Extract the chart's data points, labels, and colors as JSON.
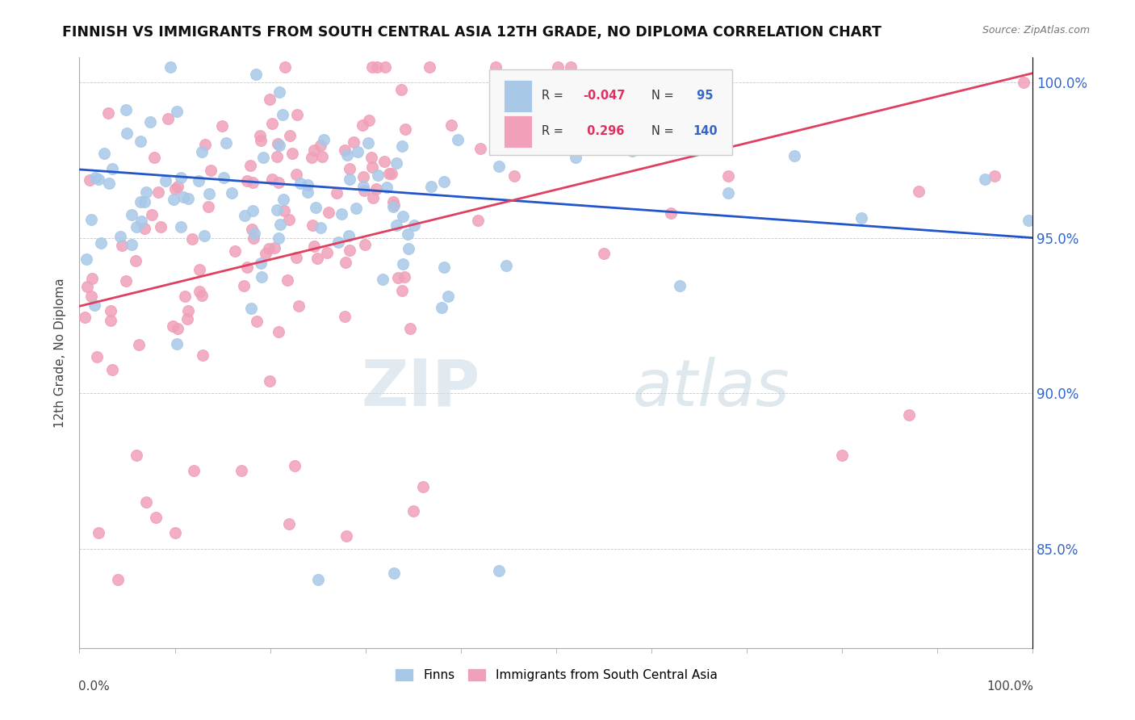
{
  "title": "FINNISH VS IMMIGRANTS FROM SOUTH CENTRAL ASIA 12TH GRADE, NO DIPLOMA CORRELATION CHART",
  "source": "Source: ZipAtlas.com",
  "ylabel": "12th Grade, No Diploma",
  "xlim": [
    0.0,
    1.0
  ],
  "ylim": [
    0.818,
    1.008
  ],
  "ytick_values": [
    0.85,
    0.9,
    0.95,
    1.0
  ],
  "finns_color": "#a8c8e8",
  "immigrants_color": "#f0a0b8",
  "line_finns_color": "#2255cc",
  "line_immigrants_color": "#e04060",
  "background_color": "#ffffff",
  "finn_R": -0.047,
  "finn_N": 95,
  "imm_R": 0.296,
  "imm_N": 140,
  "seed": 42,
  "finn_line_start_y": 0.972,
  "finn_line_end_y": 0.95,
  "imm_line_start_y": 0.928,
  "imm_line_end_y": 1.003
}
